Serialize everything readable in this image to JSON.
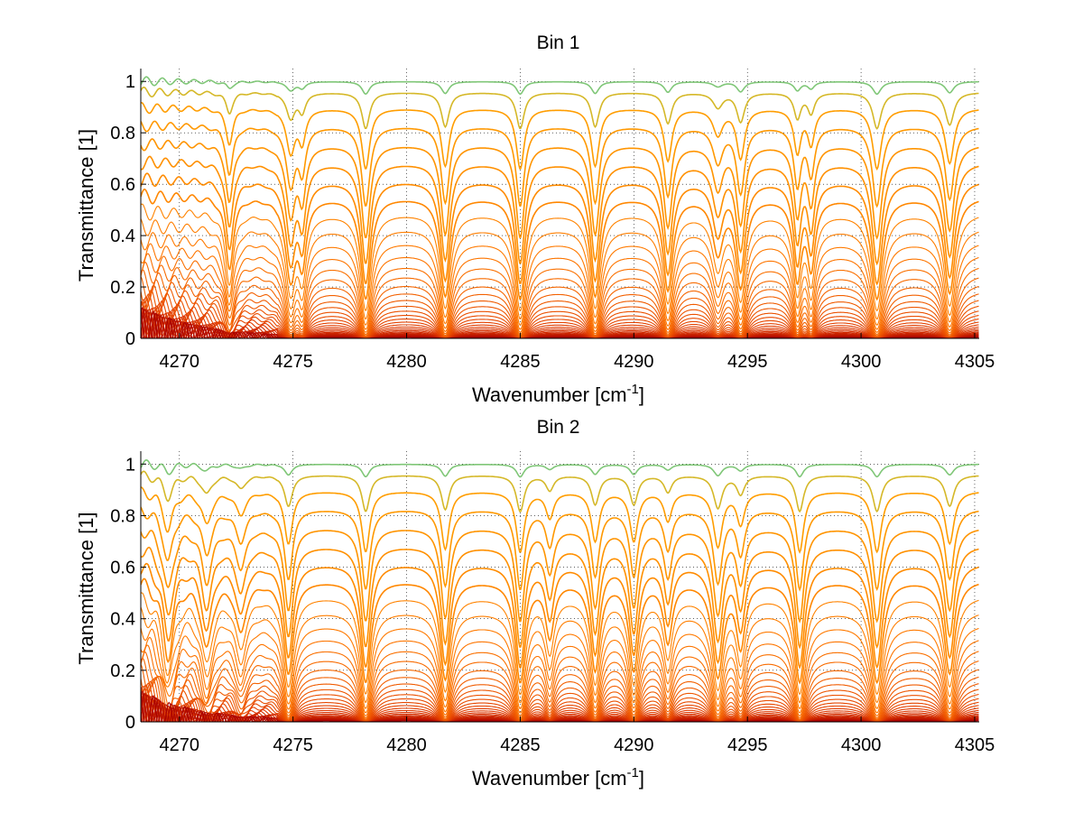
{
  "chart_data": [
    {
      "type": "line",
      "title": "Bin 1",
      "xlabel": "Wavenumber [cm",
      "xlabel_sup": "-1",
      "xlabel_end": "]",
      "ylabel": "Transmittance [1]",
      "xlim": [
        4268.3,
        4305.2
      ],
      "ylim": [
        0,
        1.05
      ],
      "xticks": [
        4270,
        4275,
        4280,
        4285,
        4290,
        4295,
        4300,
        4305
      ],
      "yticks": [
        0,
        0.2,
        0.4,
        0.6,
        0.8,
        1
      ],
      "ytick_labels": [
        "0",
        "0.2",
        "0.4",
        "0.6",
        "0.8",
        "1"
      ],
      "grid": "dotted",
      "num_curves": 36,
      "colormap": [
        "#2bd6c8",
        "#ffb000",
        "#ff7a00",
        "#e03a00",
        "#a80000"
      ],
      "absorption_lines": [
        {
          "x": 4272.2,
          "depth": 0.55,
          "width": 0.18
        },
        {
          "x": 4274.9,
          "depth": 0.7,
          "width": 0.22
        },
        {
          "x": 4275.4,
          "depth": 0.5,
          "width": 0.18
        },
        {
          "x": 4278.2,
          "depth": 1.0,
          "width": 0.2
        },
        {
          "x": 4281.7,
          "depth": 0.95,
          "width": 0.2
        },
        {
          "x": 4285.0,
          "depth": 1.0,
          "width": 0.2
        },
        {
          "x": 4288.3,
          "depth": 0.95,
          "width": 0.2
        },
        {
          "x": 4291.5,
          "depth": 0.85,
          "width": 0.2
        },
        {
          "x": 4293.7,
          "depth": 0.4,
          "width": 0.25
        },
        {
          "x": 4294.7,
          "depth": 0.8,
          "width": 0.2
        },
        {
          "x": 4297.2,
          "depth": 0.7,
          "width": 0.18
        },
        {
          "x": 4297.8,
          "depth": 0.55,
          "width": 0.18
        },
        {
          "x": 4300.7,
          "depth": 1.0,
          "width": 0.22
        },
        {
          "x": 4303.9,
          "depth": 0.9,
          "width": 0.22
        }
      ]
    },
    {
      "type": "line",
      "title": "Bin 2",
      "xlabel": "Wavenumber [cm",
      "xlabel_sup": "-1",
      "xlabel_end": "]",
      "ylabel": "Transmittance [1]",
      "xlim": [
        4268.3,
        4305.2
      ],
      "ylim": [
        0,
        1.05
      ],
      "xticks": [
        4270,
        4275,
        4280,
        4285,
        4290,
        4295,
        4300,
        4305
      ],
      "yticks": [
        0,
        0.2,
        0.4,
        0.6,
        0.8,
        1
      ],
      "ytick_labels": [
        "0",
        "0.2",
        "0.4",
        "0.6",
        "0.8",
        "1"
      ],
      "grid": "dotted",
      "num_curves": 36,
      "colormap": [
        "#2bd6c8",
        "#ffb000",
        "#ff7a00",
        "#e03a00",
        "#a80000"
      ],
      "absorption_lines": [
        {
          "x": 4269.5,
          "depth": 0.6,
          "width": 0.25
        },
        {
          "x": 4271.2,
          "depth": 0.5,
          "width": 0.25
        },
        {
          "x": 4272.7,
          "depth": 0.35,
          "width": 0.25
        },
        {
          "x": 4274.8,
          "depth": 0.85,
          "width": 0.2
        },
        {
          "x": 4278.2,
          "depth": 1.0,
          "width": 0.2
        },
        {
          "x": 4281.7,
          "depth": 0.95,
          "width": 0.2
        },
        {
          "x": 4285.0,
          "depth": 1.0,
          "width": 0.2
        },
        {
          "x": 4286.3,
          "depth": 0.4,
          "width": 0.2
        },
        {
          "x": 4288.3,
          "depth": 0.8,
          "width": 0.2
        },
        {
          "x": 4290.0,
          "depth": 0.8,
          "width": 0.2
        },
        {
          "x": 4291.5,
          "depth": 0.45,
          "width": 0.2
        },
        {
          "x": 4293.7,
          "depth": 0.9,
          "width": 0.22
        },
        {
          "x": 4294.7,
          "depth": 0.5,
          "width": 0.2
        },
        {
          "x": 4297.3,
          "depth": 1.0,
          "width": 0.2
        },
        {
          "x": 4300.7,
          "depth": 1.0,
          "width": 0.22
        },
        {
          "x": 4303.9,
          "depth": 0.85,
          "width": 0.22
        }
      ]
    }
  ]
}
